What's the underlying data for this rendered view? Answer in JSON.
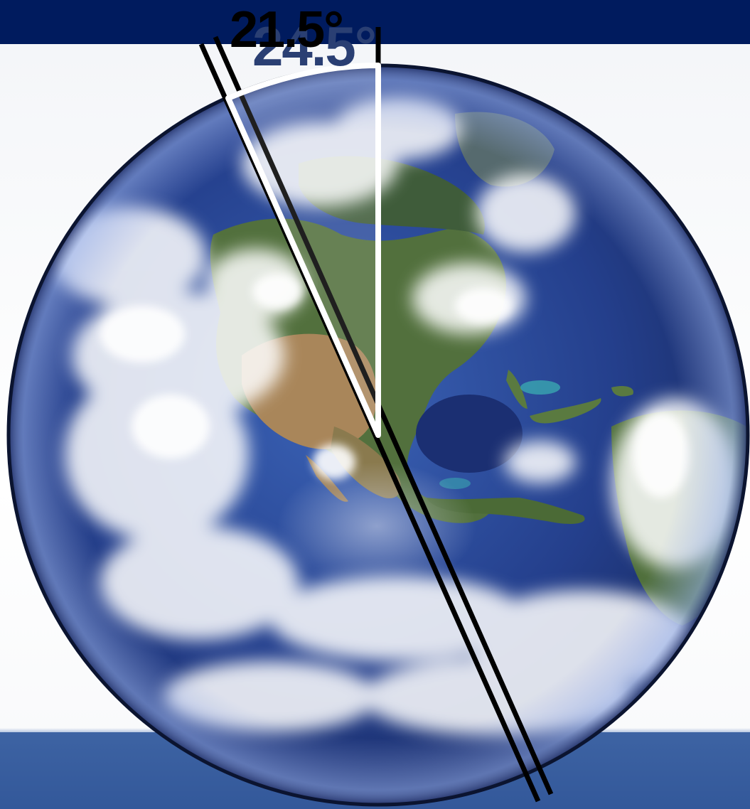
{
  "labels": {
    "angle_primary": "21.5°",
    "angle_secondary": "24.5°"
  },
  "colors": {
    "top_bar": "#001b5e",
    "bottom_bar": "#3d63a3",
    "ocean": "#1f3f8f",
    "land_green": "#4f6f3a",
    "land_desert": "#a9865a",
    "cloud": "#ffffff",
    "axis_line": "#000000",
    "wedge_outline": "#ffffff",
    "angle_primary_text": "#000000",
    "angle_secondary_text": "#2a3f73"
  },
  "icons": {
    "globe": "earth-globe-icon"
  }
}
